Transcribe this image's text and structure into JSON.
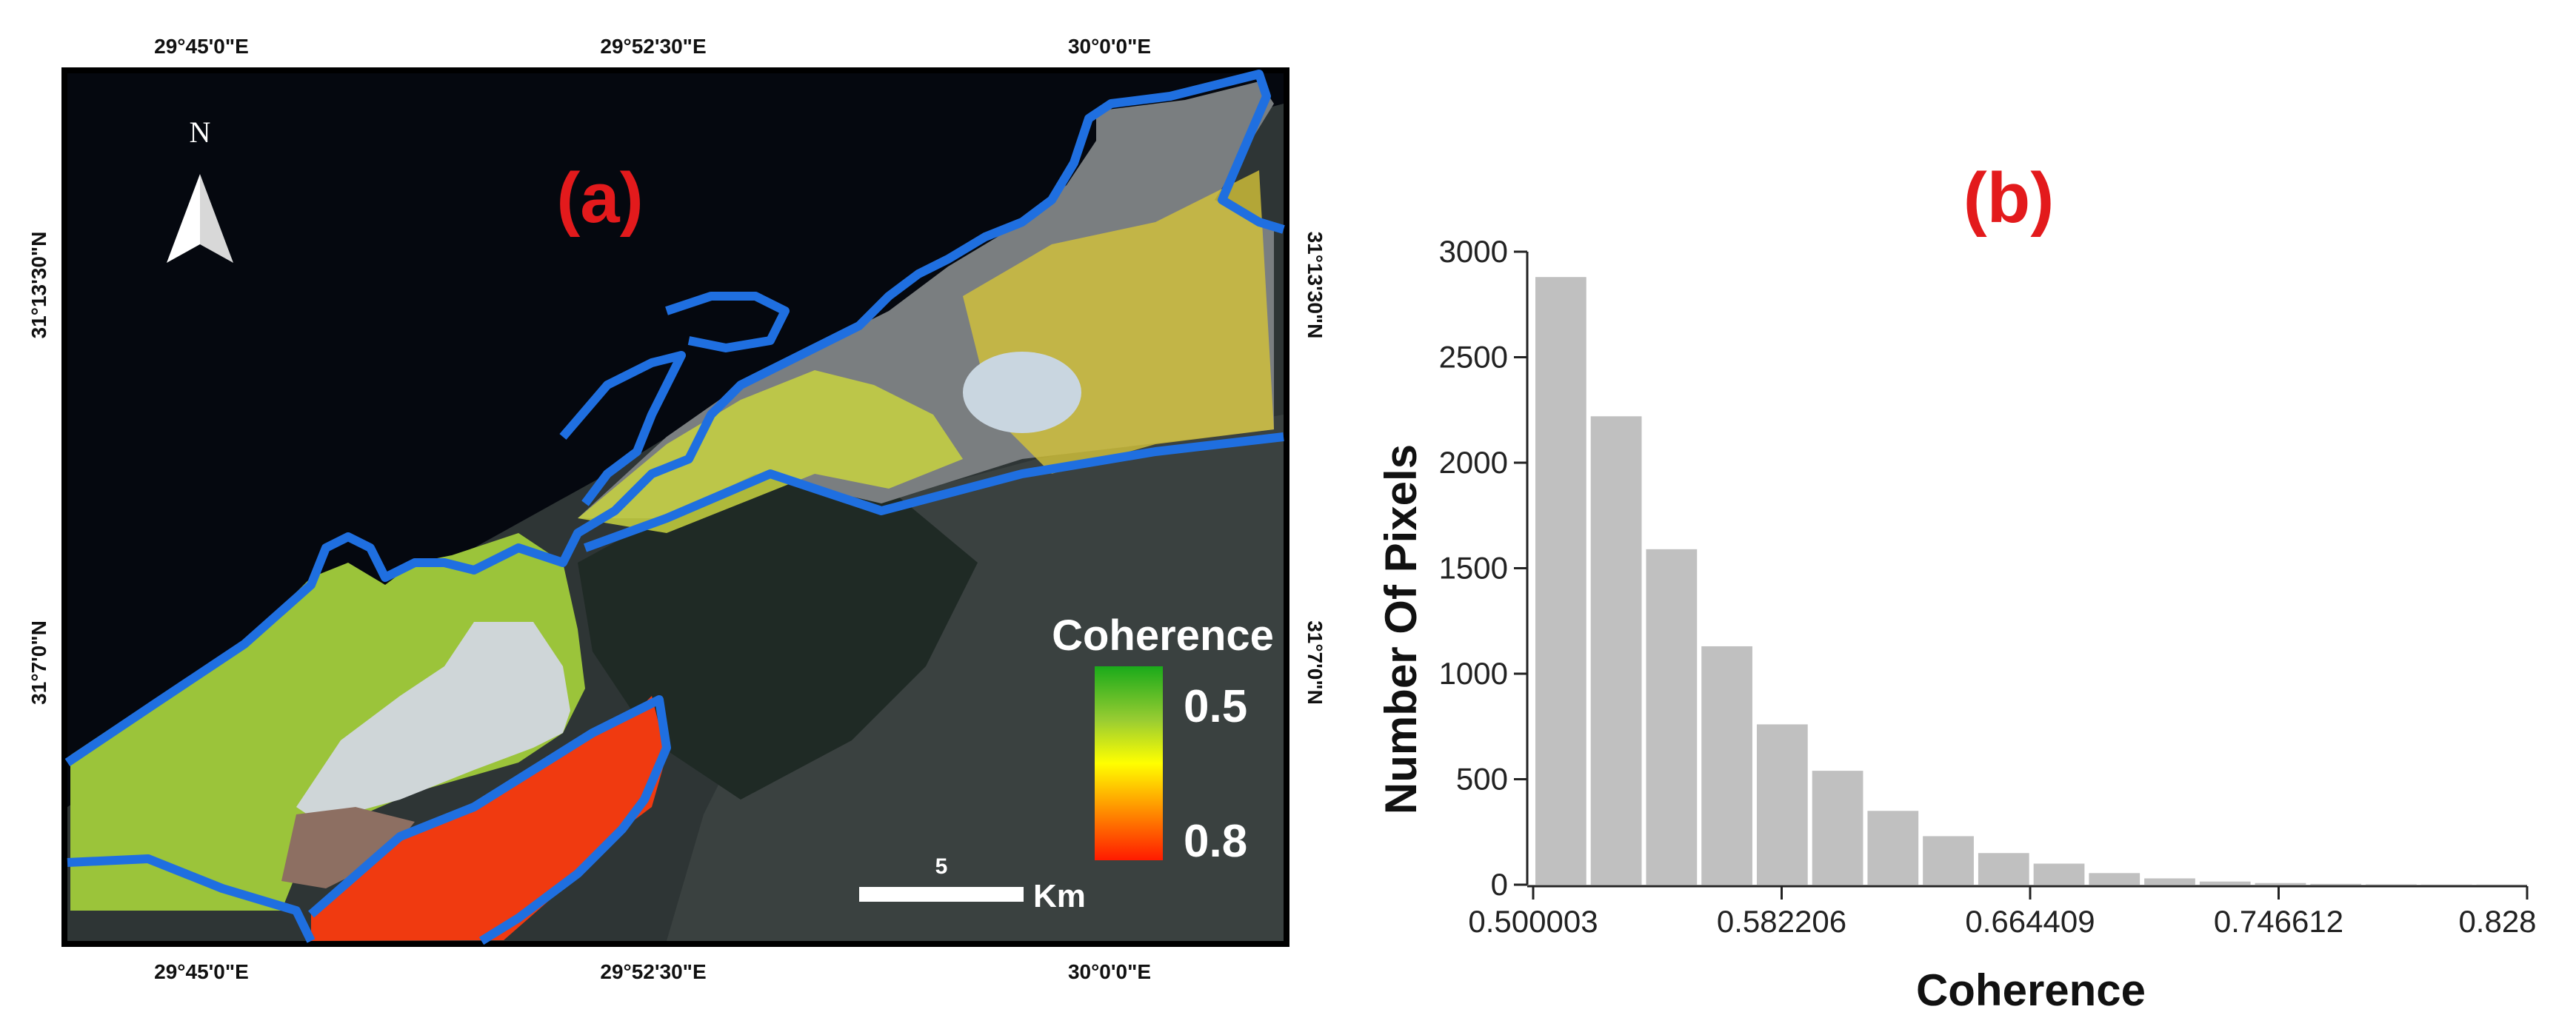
{
  "panel_a": {
    "label": "(a)",
    "north_label": "N",
    "top_lon_labels": [
      "29°45'0\"E",
      "29°52'30\"E",
      "30°0'0\"E"
    ],
    "bottom_lon_labels": [
      "29°45'0\"E",
      "29°52'30\"E",
      "30°0'0\"E"
    ],
    "left_lat_labels": [
      "31°13'30\"N",
      "31°7'0\"N"
    ],
    "right_lat_labels": [
      "31°13'30\"N",
      "31°7'0\"N"
    ],
    "legend": {
      "title": "Coherence",
      "top_value": "0.5",
      "bottom_value": "0.8",
      "colors": [
        "#1aaa1a",
        "#9acd32",
        "#ffff00",
        "#ff8c00",
        "#ff1a00"
      ]
    },
    "scale_bar": {
      "value": "5",
      "unit": "Km"
    },
    "colors": {
      "boundary": "#1f6fe0",
      "sea": "#05080f",
      "land": "#2e3535"
    }
  },
  "panel_b": {
    "label": "(b)"
  },
  "chart_data": {
    "type": "bar",
    "title": "",
    "xlabel": "Coherence",
    "ylabel": "Number Of Pixels",
    "ylim": [
      0,
      3000
    ],
    "yticks": [
      0,
      500,
      1000,
      1500,
      2000,
      2500,
      3000
    ],
    "xlim": [
      0.500003,
      0.828
    ],
    "xtick_labels": [
      "0.500003",
      "0.582206",
      "0.664409",
      "0.746612",
      "0.828"
    ],
    "bin_width": 0.018267,
    "bin_starts": [
      0.500003,
      0.51827,
      0.536537,
      0.554804,
      0.573071,
      0.591338,
      0.609605,
      0.627872,
      0.646139,
      0.664406,
      0.682673,
      0.70094,
      0.719207,
      0.737474,
      0.755741,
      0.774008,
      0.792275,
      0.810542
    ],
    "values": [
      2880,
      2220,
      1590,
      1130,
      760,
      540,
      350,
      230,
      150,
      100,
      55,
      30,
      15,
      8,
      4,
      2,
      1,
      1
    ],
    "bar_color": "#c0c0c0",
    "grid": false
  }
}
